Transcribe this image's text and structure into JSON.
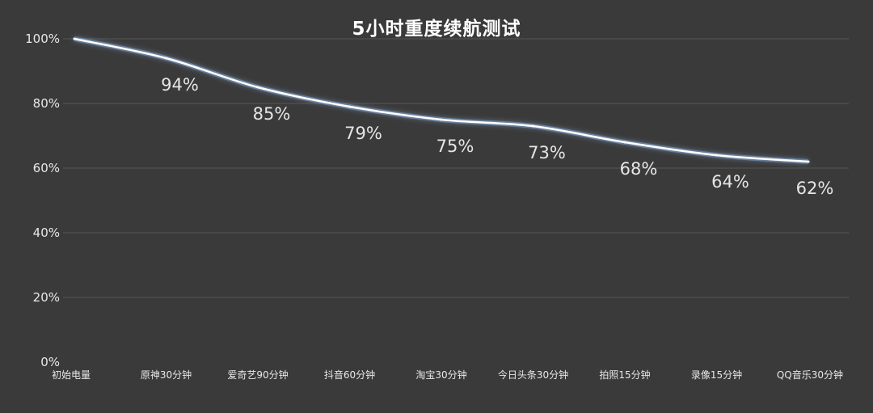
{
  "chart_data": {
    "type": "line",
    "title": "5小时重度续航测试",
    "xlabel": "",
    "ylabel": "",
    "categories": [
      "初始电量",
      "原神30分钟",
      "爱奇艺90分钟",
      "抖音60分钟",
      "淘宝30分钟",
      "今日头条30分钟",
      "拍照15分钟",
      "录像15分钟",
      "QQ音乐30分钟"
    ],
    "series": [
      {
        "values": [
          100,
          94,
          85,
          79,
          75,
          73,
          68,
          64,
          62
        ],
        "data_labels": [
          "",
          "94%",
          "85%",
          "79%",
          "75%",
          "73%",
          "68%",
          "64%",
          "62%"
        ]
      }
    ],
    "y_ticks": [
      "0%",
      "20%",
      "40%",
      "60%",
      "80%",
      "100%"
    ],
    "ylim": [
      0,
      100
    ],
    "grid": true,
    "legend": "none",
    "colors": {
      "background": "#3a3a3a",
      "line": "#ffffff",
      "glow": "#9fc8ff",
      "grid": "#555555",
      "text": "#e8e8e8"
    }
  }
}
